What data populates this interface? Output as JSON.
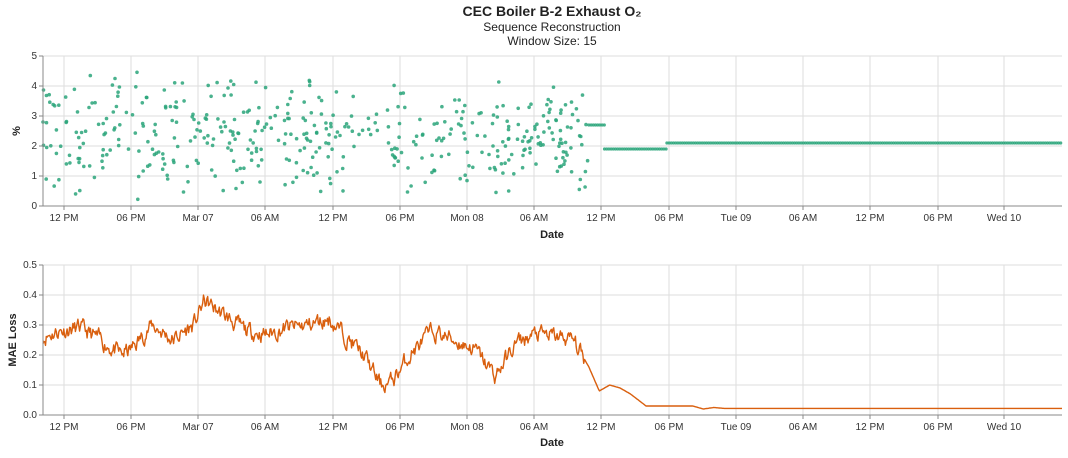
{
  "title": "CEC Boiler B-2 Exhaust O₂",
  "subtitle": "Sequence Reconstruction",
  "subtitle2": "Window Size: 15",
  "colors": {
    "scatter": "#2aa57a",
    "line": "#d95f0e",
    "grid": "#dddddd"
  },
  "x_tick_labels": [
    "12 PM",
    "06 PM",
    "Mar 07",
    "06 AM",
    "12 PM",
    "06 PM",
    "Mon 08",
    "06 AM",
    "12 PM",
    "06 PM",
    "Tue 09",
    "06 AM",
    "12 PM",
    "06 PM",
    "Wed 10"
  ],
  "chart_data": [
    {
      "type": "scatter",
      "xlabel": "Date",
      "ylabel": "%",
      "ylim": [
        0,
        5
      ],
      "y_ticks": [
        "0",
        "1",
        "2",
        "3",
        "4",
        "5"
      ],
      "xlim": [
        "Mar 06 09:30",
        "Mar 10 11:30"
      ],
      "grid": true,
      "series": [
        {
          "segments": [
            {
              "x": [
                "Mar 06 09:30",
                "Mar 07 14:30"
              ],
              "y_range": [
                0.2,
                4.5
              ]
            },
            {
              "x": [
                "Mar 07 14:30",
                "Mar 07 19:00"
              ],
              "y_range": [
                1.8,
                3.8
              ]
            },
            {
              "x": [
                "Mar 07 19:00",
                "Mar 08 14:00"
              ],
              "y_range": [
                0.2,
                4.3
              ]
            },
            {
              "x": [
                "Mar 08 14:00",
                "Mar 08 15:30"
              ],
              "y_value": 2.7
            },
            {
              "x": [
                "Mar 08 15:30",
                "Mar 08 21:30"
              ],
              "y_value": 1.9
            },
            {
              "x": [
                "Mar 08 21:30",
                "Mar 10 11:30"
              ],
              "y_value": 2.1
            }
          ]
        }
      ]
    },
    {
      "type": "line",
      "xlabel": "Date",
      "ylabel": "MAE Loss",
      "ylim": [
        0,
        0.5
      ],
      "y_ticks": [
        "0.0",
        "0.1",
        "0.2",
        "0.3",
        "0.4",
        "0.5"
      ],
      "grid": true,
      "series": [
        {
          "x": [
            "Mar 06 09:30",
            "Mar 06 11:00",
            "Mar 06 13:00",
            "Mar 06 15:00",
            "Mar 06 17:00",
            "Mar 06 18:00",
            "Mar 06 20:00",
            "Mar 06 22:00",
            "Mar 07 00:00",
            "Mar 07 01:00",
            "Mar 07 03:00",
            "Mar 07 05:00",
            "Mar 07 07:00",
            "Mar 07 09:00",
            "Mar 07 11:00",
            "Mar 07 13:00",
            "Mar 07 15:00",
            "Mar 07 16:30",
            "Mar 07 18:00",
            "Mar 07 19:00",
            "Mar 07 21:00",
            "Mar 07 23:00",
            "Mar 08 01:00",
            "Mar 08 03:00",
            "Mar 08 05:00",
            "Mar 08 07:00",
            "Mar 08 09:00",
            "Mar 08 11:00",
            "Mar 08 12:30",
            "Mar 08 14:00",
            "Mar 08 15:00",
            "Mar 08 16:00",
            "Mar 08 17:00",
            "Mar 08 18:00",
            "Mar 08 19:30",
            "Mar 08 20:00",
            "Mar 08 22:00",
            "Mar 09 00:00",
            "Mar 09 01:00",
            "Mar 09 02:00",
            "Mar 09 03:00",
            "Mar 09 06:00",
            "Mar 10 11:30"
          ],
          "y": [
            0.26,
            0.28,
            0.29,
            0.25,
            0.2,
            0.22,
            0.3,
            0.25,
            0.3,
            0.38,
            0.33,
            0.28,
            0.27,
            0.29,
            0.3,
            0.32,
            0.25,
            0.19,
            0.1,
            0.11,
            0.21,
            0.28,
            0.25,
            0.22,
            0.13,
            0.24,
            0.27,
            0.26,
            0.25,
            0.16,
            0.08,
            0.1,
            0.09,
            0.07,
            0.03,
            0.03,
            0.03,
            0.03,
            0.02,
            0.025,
            0.022,
            0.022,
            0.022
          ]
        }
      ]
    }
  ]
}
